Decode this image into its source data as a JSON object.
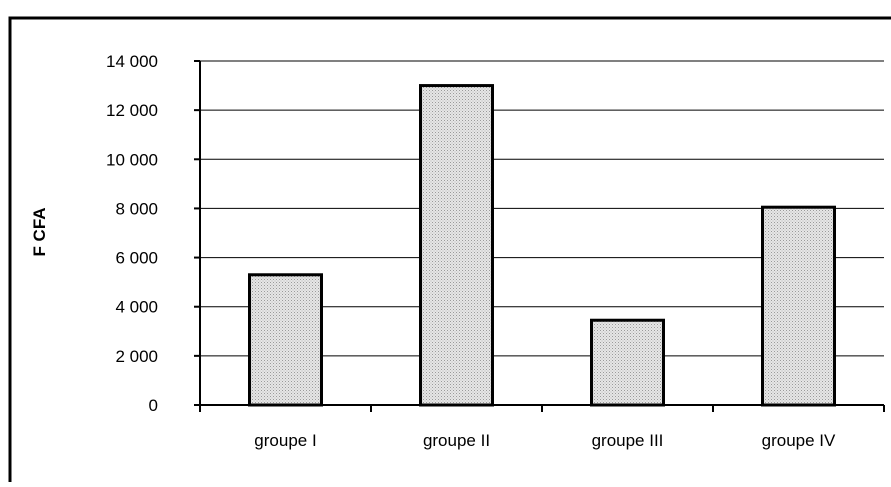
{
  "chart_data": {
    "type": "bar",
    "title": "",
    "xlabel": "",
    "ylabel": "F CFA",
    "categories": [
      "groupe I",
      "groupe II",
      "groupe III",
      "groupe IV"
    ],
    "values": [
      5300,
      13000,
      3450,
      8050
    ],
    "ylim": [
      0,
      14000
    ],
    "yticks": [
      0,
      2000,
      4000,
      6000,
      8000,
      10000,
      12000,
      14000
    ],
    "ytick_labels": [
      "0",
      "2 000",
      "4 000",
      "6 000",
      "8 000",
      "10 000",
      "12 000",
      "14 000"
    ],
    "grid": true,
    "legend": "none",
    "colors": {
      "bar_fill": "#d9d9d9",
      "bar_stroke": "#000000",
      "grid": "#000000",
      "frame": "#000000"
    }
  }
}
